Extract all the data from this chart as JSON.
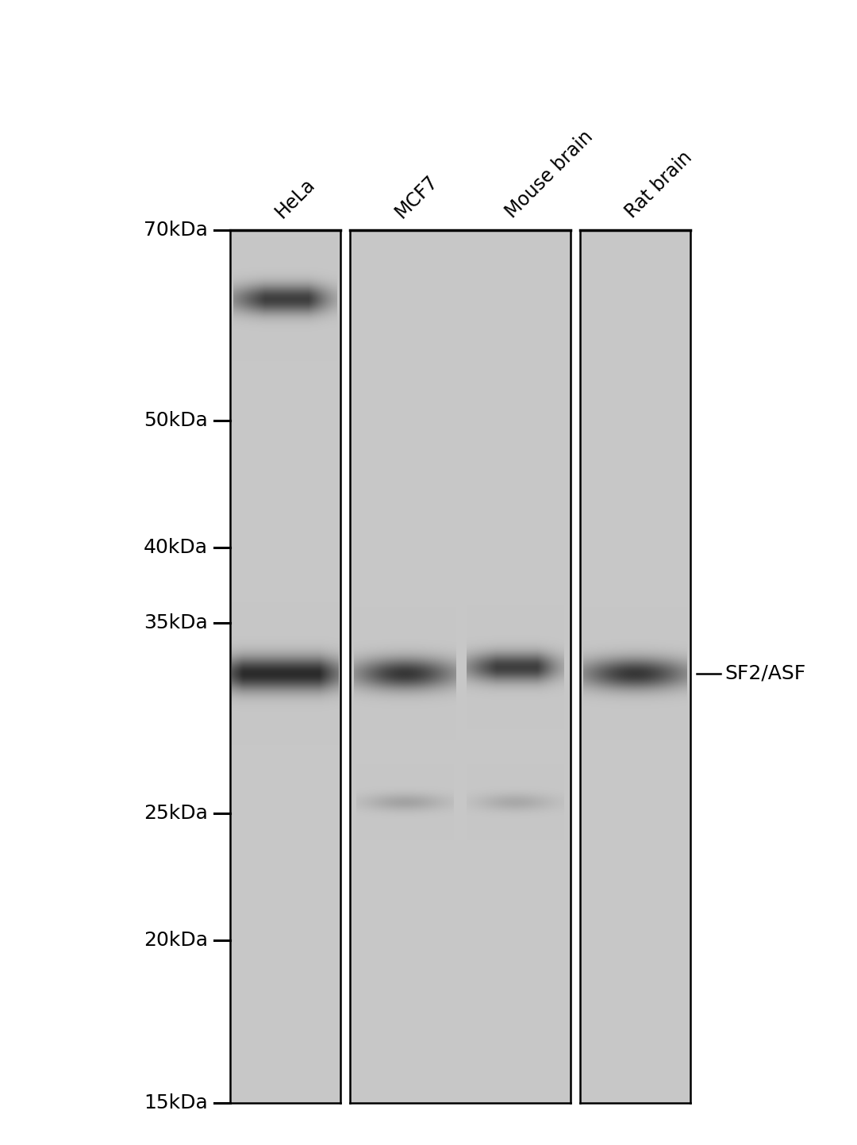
{
  "bg_color": "#ffffff",
  "panel_bg_gray": 0.78,
  "mw_markers": [
    "70kDa",
    "50kDa",
    "40kDa",
    "35kDa",
    "25kDa",
    "20kDa",
    "15kDa"
  ],
  "mw_values": [
    70,
    50,
    40,
    35,
    25,
    20,
    15
  ],
  "lane_labels": [
    "HeLa",
    "MCF7",
    "Mouse brain",
    "Rat brain"
  ],
  "band_label": "SF2/ASF",
  "band_mw": 32,
  "upper_band_mw": 62,
  "label_fontsize": 17,
  "marker_fontsize": 18,
  "annot_fontsize": 18
}
